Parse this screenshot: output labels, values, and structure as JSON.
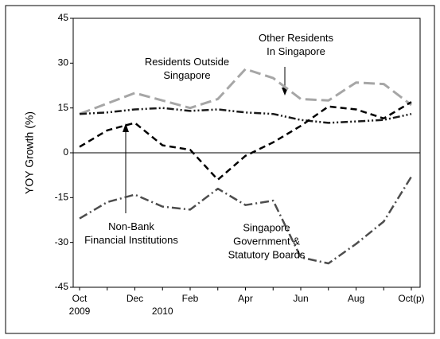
{
  "chart_data": {
    "type": "line",
    "y_label": "YOY Growth (%)",
    "categories": [
      "Oct",
      null,
      "Dec",
      null,
      "Feb",
      null,
      "Apr",
      null,
      "Jun",
      null,
      "Aug",
      null,
      "Oct(p)"
    ],
    "year_labels": [
      {
        "index": 0,
        "label": "2009"
      },
      {
        "index": 3,
        "label": "2010"
      }
    ],
    "ylim": [
      -45,
      45
    ],
    "yticks": [
      45,
      30,
      15,
      0,
      -15,
      -30,
      -45
    ],
    "grid": false,
    "series": [
      {
        "name": "Residents Outside\nSingapore",
        "color": "#a6a6a6",
        "values": [
          13,
          16.5,
          20,
          17.5,
          15,
          18,
          28,
          25,
          18,
          17.5,
          23.5,
          23,
          16
        ]
      },
      {
        "name": "Other Residents\nIn Singapore",
        "color": "#1a1a1a",
        "values": [
          13,
          13.5,
          14.5,
          15,
          14,
          14.5,
          13.5,
          13,
          11,
          10,
          10.5,
          11,
          13
        ]
      },
      {
        "name": "Non-Bank\nFinancial Institutions",
        "color": "#000000",
        "values": [
          2,
          7.5,
          10,
          2.5,
          1,
          -9,
          -1,
          3.5,
          9,
          15.5,
          14.5,
          11.5,
          17
        ]
      },
      {
        "name": "Singapore\nGovernment &\nStatutory Boards",
        "color": "#4d4d4d",
        "values": [
          -22,
          -16.5,
          -14,
          -18,
          -19,
          -12,
          -17.5,
          -16,
          -35,
          -37,
          -30.5,
          -23,
          -8
        ]
      }
    ]
  }
}
